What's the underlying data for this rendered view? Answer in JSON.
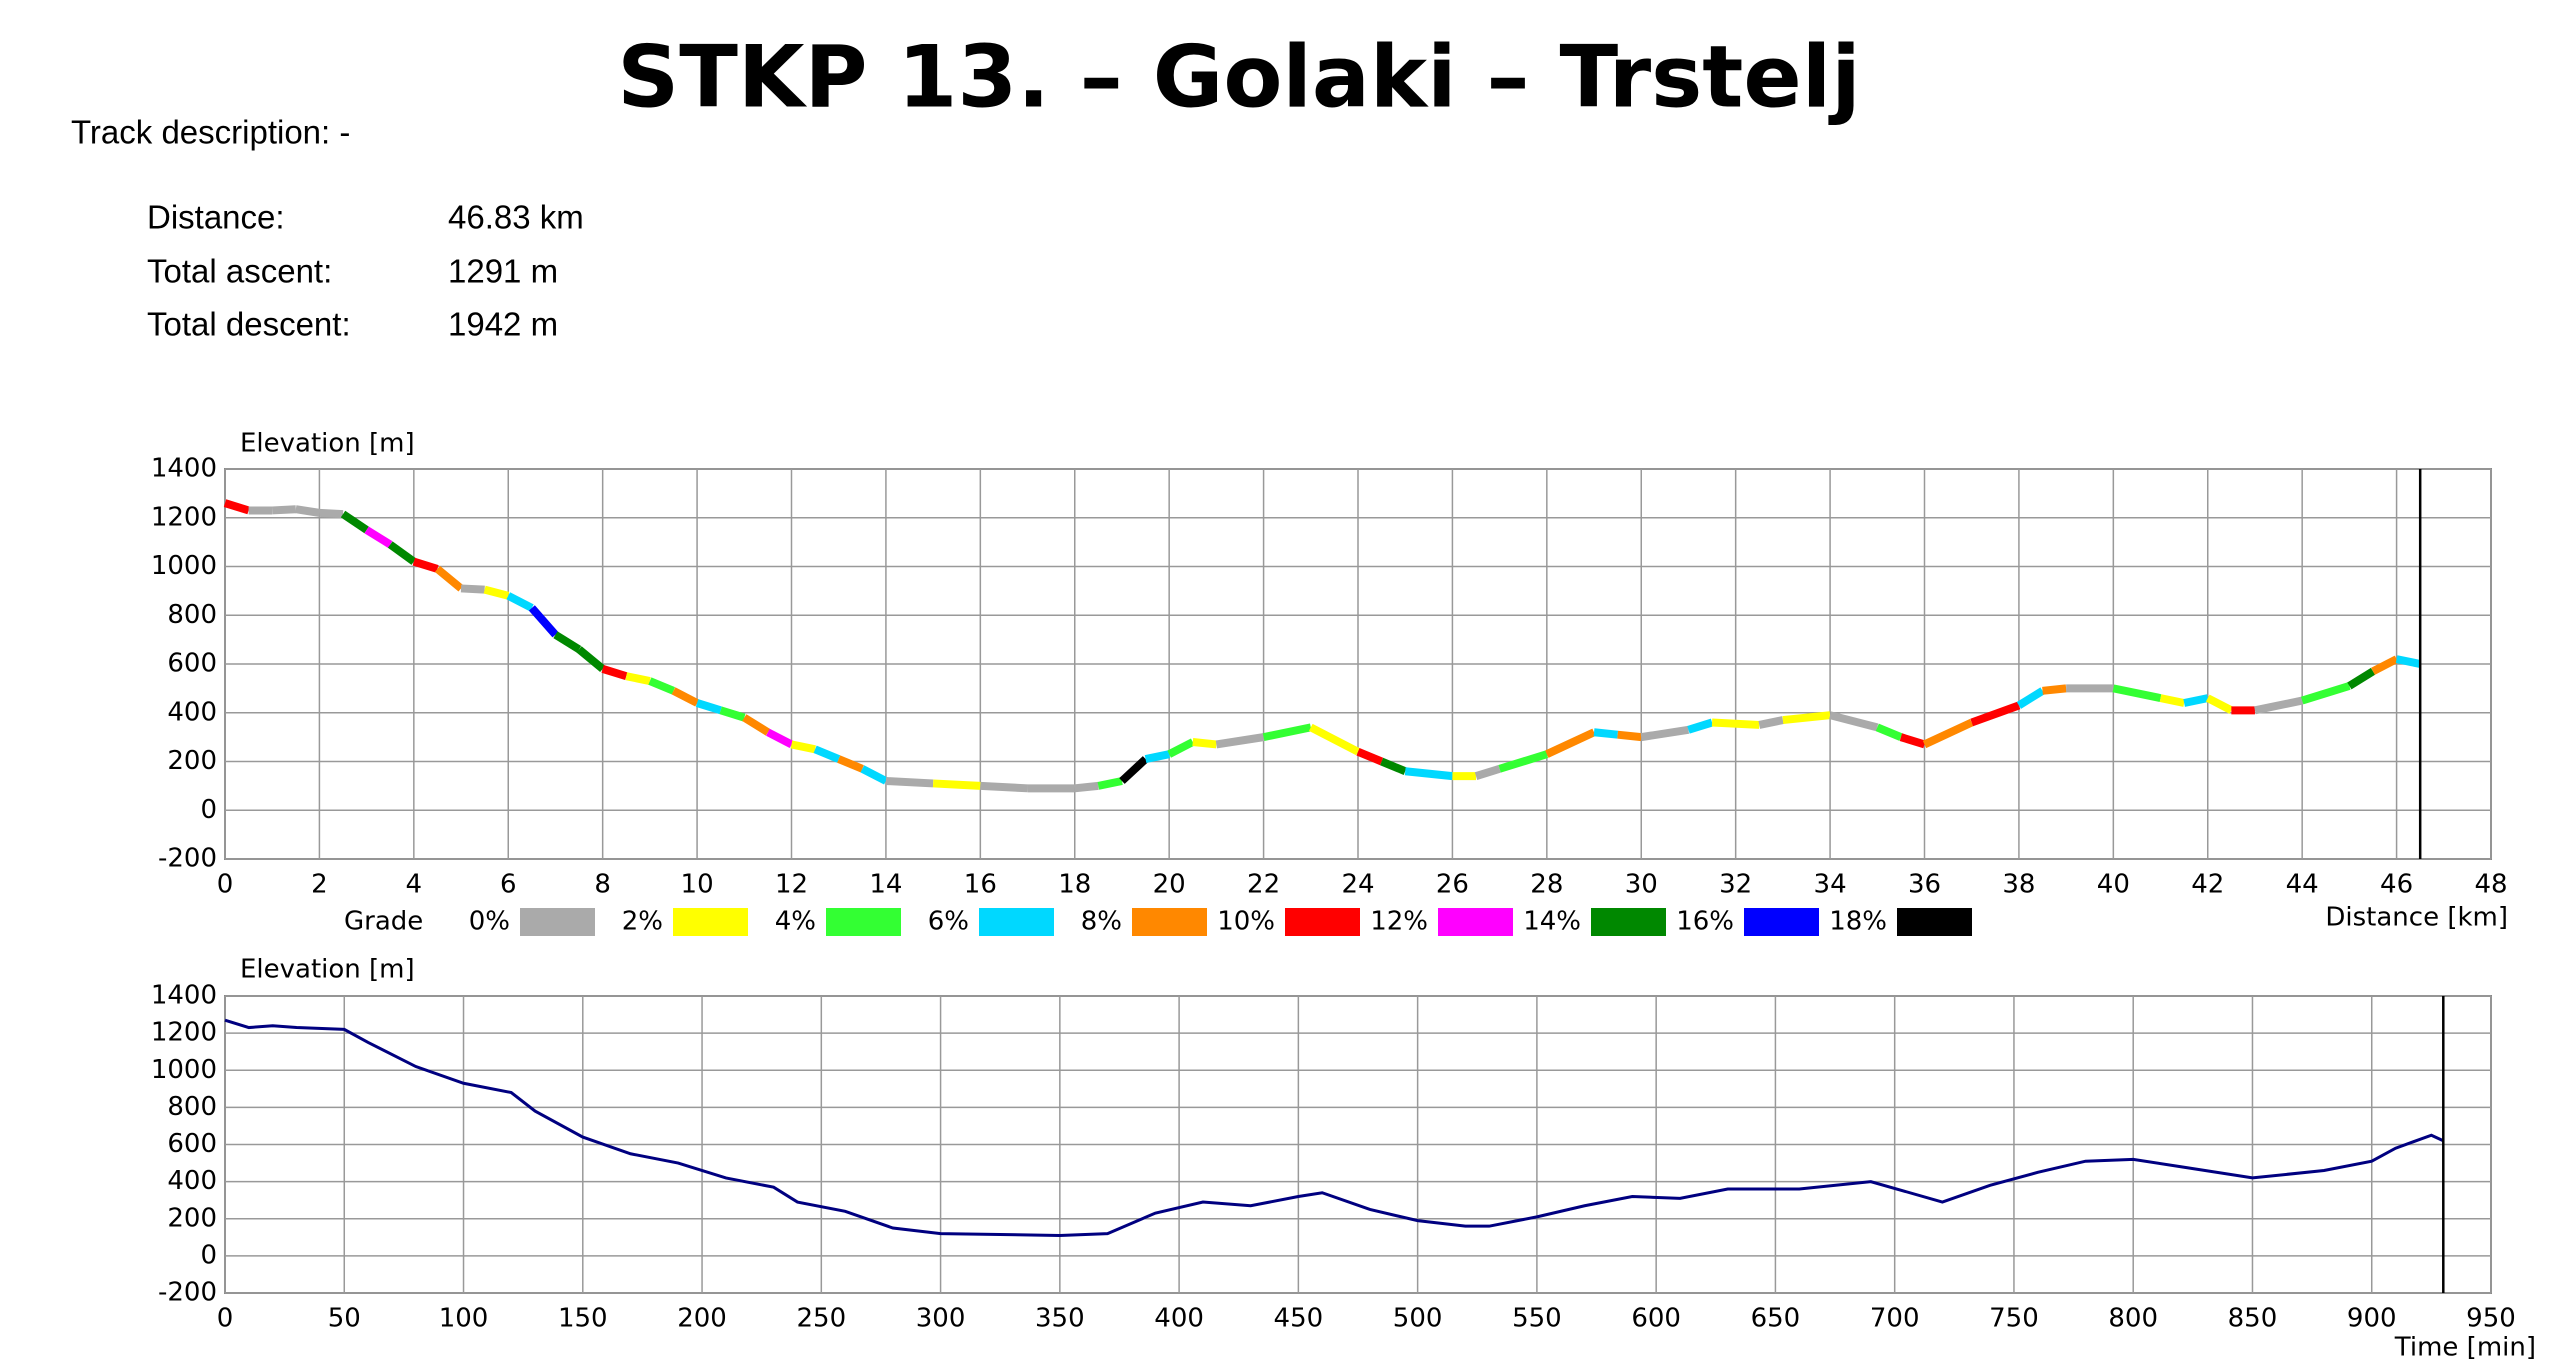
{
  "title": "STKP 13. – Golaki – Trstelj",
  "track_description": "Track description: -",
  "stats": [
    {
      "label": "Distance:",
      "value": "46.83 km"
    },
    {
      "label": "Total ascent:",
      "value": "1291 m"
    },
    {
      "label": "Total descent:",
      "value": "1942 m"
    }
  ],
  "chart_data": [
    {
      "type": "line",
      "y_label": "Elevation [m]",
      "x_label": "Distance [km]",
      "xlim": [
        0,
        48
      ],
      "xticks": [
        0,
        2,
        4,
        6,
        8,
        10,
        12,
        14,
        16,
        18,
        20,
        22,
        24,
        26,
        28,
        30,
        32,
        34,
        36,
        38,
        40,
        42,
        44,
        46,
        48
      ],
      "ylim": [
        -200,
        1400
      ],
      "yticks": [
        -200,
        0,
        200,
        400,
        600,
        800,
        1000,
        1200,
        1400
      ],
      "grid": true,
      "x": [
        0,
        0.5,
        1,
        1.5,
        2,
        2.5,
        3,
        3.5,
        4,
        4.5,
        5,
        5.5,
        6,
        6.5,
        7,
        7.5,
        8,
        8.5,
        9,
        9.5,
        10,
        10.5,
        11,
        11.5,
        12,
        12.5,
        13,
        13.5,
        14,
        15,
        16,
        17,
        18,
        18.5,
        19,
        19.5,
        20,
        20.5,
        21,
        22,
        23,
        24,
        24.5,
        25,
        26,
        26.5,
        27,
        28,
        29,
        29.5,
        30,
        31,
        31.5,
        32.5,
        33,
        34,
        35,
        35.5,
        36,
        37,
        38,
        38.5,
        39,
        40,
        41,
        41.5,
        42,
        42.5,
        43,
        44,
        45,
        45.5,
        46,
        46.5
      ],
      "series": [
        {
          "name": "Elevation",
          "values": [
            1260,
            1230,
            1230,
            1235,
            1220,
            1215,
            1150,
            1090,
            1020,
            990,
            910,
            905,
            880,
            830,
            720,
            660,
            580,
            550,
            530,
            490,
            440,
            410,
            380,
            320,
            270,
            250,
            210,
            170,
            120,
            110,
            100,
            90,
            90,
            100,
            120,
            210,
            230,
            280,
            270,
            300,
            340,
            240,
            200,
            160,
            140,
            140,
            170,
            230,
            320,
            310,
            300,
            330,
            360,
            350,
            370,
            390,
            340,
            300,
            270,
            360,
            430,
            490,
            500,
            500,
            460,
            440,
            460,
            410,
            410,
            450,
            510,
            570,
            620,
            600
          ],
          "segment_colors": [
            "#ff0000",
            "#aaaaaa",
            "#aaaaaa",
            "#aaaaaa",
            "#aaaaaa",
            "#008800",
            "#ff00ff",
            "#008800",
            "#ff0000",
            "#ff8800",
            "#aaaaaa",
            "#ffff00",
            "#00d8ff",
            "#0000ff",
            "#008800",
            "#008800",
            "#ff0000",
            "#ffff00",
            "#33ff33",
            "#ff8800",
            "#00d8ff",
            "#33ff33",
            "#ff8800",
            "#ff00ff",
            "#ffff00",
            "#00d8ff",
            "#ff8800",
            "#00d8ff",
            "#aaaaaa",
            "#ffff00",
            "#aaaaaa",
            "#aaaaaa",
            "#aaaaaa",
            "#33ff33",
            "#000000",
            "#00d8ff",
            "#33ff33",
            "#ffff00",
            "#aaaaaa",
            "#33ff33",
            "#ffff00",
            "#ff0000",
            "#008800",
            "#00d8ff",
            "#ffff00",
            "#aaaaaa",
            "#33ff33",
            "#ff8800",
            "#00d8ff",
            "#ff8800",
            "#aaaaaa",
            "#00d8ff",
            "#ffff00",
            "#aaaaaa",
            "#ffff00",
            "#aaaaaa",
            "#33ff33",
            "#ff0000",
            "#ff8800",
            "#ff0000",
            "#00d8ff",
            "#ff8800",
            "#aaaaaa",
            "#33ff33",
            "#ffff00",
            "#00d8ff",
            "#ffff00",
            "#ff0000",
            "#aaaaaa",
            "#33ff33",
            "#008800",
            "#ff8800",
            "#00d8ff"
          ]
        }
      ],
      "legend": {
        "title": "Grade",
        "items": [
          {
            "label": "0%",
            "color": "#aaaaaa"
          },
          {
            "label": "2%",
            "color": "#ffff00"
          },
          {
            "label": "4%",
            "color": "#33ff33"
          },
          {
            "label": "6%",
            "color": "#00d8ff"
          },
          {
            "label": "8%",
            "color": "#ff8800"
          },
          {
            "label": "10%",
            "color": "#ff0000"
          },
          {
            "label": "12%",
            "color": "#ff00ff"
          },
          {
            "label": "14%",
            "color": "#008800"
          },
          {
            "label": "16%",
            "color": "#0000ff"
          },
          {
            "label": "18%",
            "color": "#000000"
          }
        ]
      }
    },
    {
      "type": "line",
      "y_label": "Elevation [m]",
      "x_label": "Time [min]",
      "xlim": [
        0,
        950
      ],
      "xticks": [
        0,
        50,
        100,
        150,
        200,
        250,
        300,
        350,
        400,
        450,
        500,
        550,
        600,
        650,
        700,
        750,
        800,
        850,
        900,
        950
      ],
      "ylim": [
        -200,
        1400
      ],
      "yticks": [
        -200,
        0,
        200,
        400,
        600,
        800,
        1000,
        1200,
        1400
      ],
      "grid": true,
      "x": [
        0,
        10,
        20,
        30,
        50,
        60,
        80,
        100,
        120,
        130,
        150,
        170,
        190,
        210,
        230,
        240,
        260,
        280,
        300,
        350,
        370,
        390,
        410,
        430,
        450,
        460,
        480,
        500,
        520,
        530,
        550,
        570,
        590,
        610,
        630,
        660,
        690,
        720,
        740,
        760,
        780,
        800,
        820,
        850,
        880,
        900,
        910,
        925,
        930
      ],
      "series": [
        {
          "name": "Elevation",
          "color": "#000080",
          "values": [
            1270,
            1230,
            1240,
            1230,
            1220,
            1150,
            1020,
            930,
            880,
            780,
            640,
            550,
            500,
            420,
            370,
            290,
            240,
            150,
            120,
            110,
            120,
            230,
            290,
            270,
            320,
            340,
            250,
            190,
            160,
            160,
            210,
            270,
            320,
            310,
            360,
            360,
            400,
            290,
            380,
            450,
            510,
            520,
            480,
            420,
            460,
            510,
            580,
            650,
            620
          ]
        }
      ]
    }
  ]
}
